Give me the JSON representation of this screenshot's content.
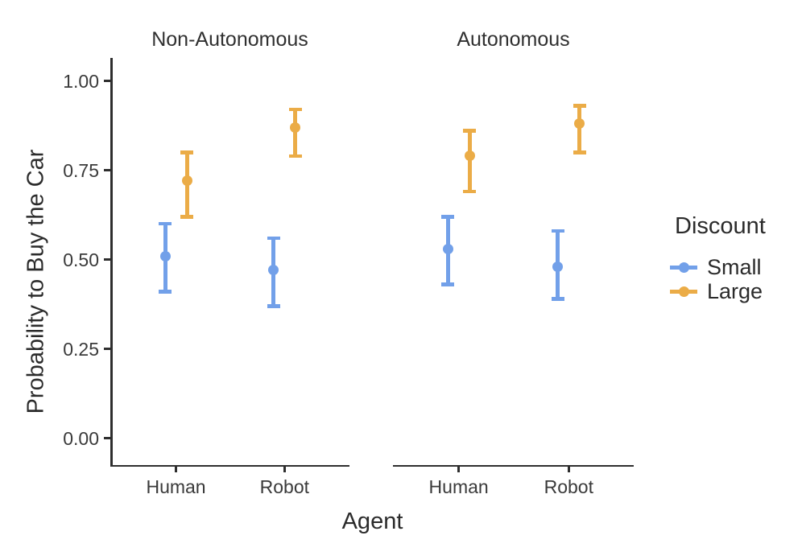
{
  "chart_data": {
    "type": "pointrange",
    "title": "",
    "xlabel": "Agent",
    "ylabel": "Probability to Buy the Car",
    "x_categories": [
      "Human",
      "Robot"
    ],
    "facet_labels": [
      "Non-Autonomous",
      "Autonomous"
    ],
    "ylim": [
      0,
      1
    ],
    "yticks": [
      0,
      0.25,
      0.5,
      0.75,
      1
    ],
    "ytick_labels": [
      "0.00",
      "0.25",
      "0.50",
      "0.75",
      "1.00"
    ],
    "grid": "off",
    "legend": {
      "title": "Discount",
      "position": "right",
      "entries": [
        {
          "label": "Small",
          "color": "#72A0E9"
        },
        {
          "label": "Large",
          "color": "#EBAC47"
        }
      ]
    },
    "series": [
      {
        "name": "Small",
        "color": "#72A0E9",
        "data": [
          {
            "facet": "Non-Autonomous",
            "x": "Human",
            "mean": 0.51,
            "lower": 0.41,
            "upper": 0.6
          },
          {
            "facet": "Non-Autonomous",
            "x": "Robot",
            "mean": 0.47,
            "lower": 0.37,
            "upper": 0.56
          },
          {
            "facet": "Autonomous",
            "x": "Human",
            "mean": 0.53,
            "lower": 0.43,
            "upper": 0.62
          },
          {
            "facet": "Autonomous",
            "x": "Robot",
            "mean": 0.48,
            "lower": 0.39,
            "upper": 0.58
          }
        ]
      },
      {
        "name": "Large",
        "color": "#EBAC47",
        "data": [
          {
            "facet": "Non-Autonomous",
            "x": "Human",
            "mean": 0.72,
            "lower": 0.62,
            "upper": 0.8
          },
          {
            "facet": "Non-Autonomous",
            "x": "Robot",
            "mean": 0.87,
            "lower": 0.79,
            "upper": 0.92
          },
          {
            "facet": "Autonomous",
            "x": "Human",
            "mean": 0.79,
            "lower": 0.69,
            "upper": 0.86
          },
          {
            "facet": "Autonomous",
            "x": "Robot",
            "mean": 0.88,
            "lower": 0.8,
            "upper": 0.93
          }
        ]
      }
    ],
    "colors": {
      "background": "#FFFFFF",
      "axis": "#2E2E2E",
      "small": "#72A0E9",
      "large": "#EBAC47"
    }
  }
}
